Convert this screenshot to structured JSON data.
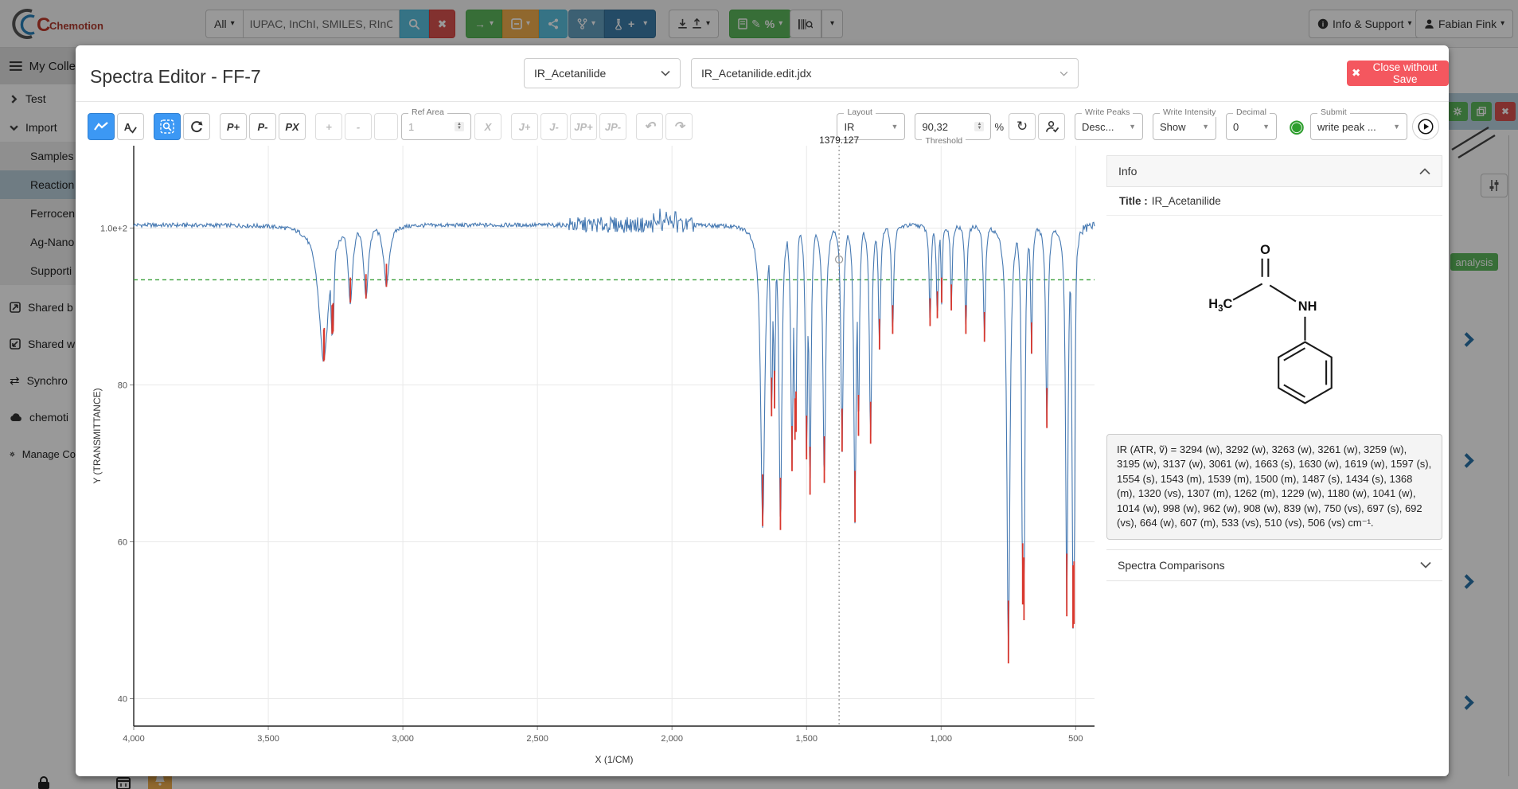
{
  "navbar": {
    "brand": "Chemotion",
    "search_scope": "All",
    "search_placeholder": "IUPAC, InChI, SMILES, RInChI",
    "info_support_label": "Info & Support",
    "user_label": "Fabian Fink"
  },
  "sidebar": {
    "header": "My Colle",
    "items": [
      {
        "label": "Test"
      },
      {
        "label": "Import"
      },
      {
        "label": "Samples"
      },
      {
        "label": "Reaction"
      },
      {
        "label": "Ferrocen"
      },
      {
        "label": "Ag-Nano"
      },
      {
        "label": "Supporti"
      },
      {
        "label": "Shared b"
      },
      {
        "label": "Shared w"
      },
      {
        "label": "Synchro"
      },
      {
        "label": "chemoti"
      },
      {
        "label": "Manage Co"
      }
    ]
  },
  "background_right": {
    "analysis_badge": "analysis"
  },
  "modal": {
    "title": "Spectra Editor - FF-7",
    "spectrum_select": "IR_Acetanilide",
    "file_select": "IR_Acetanilide.edit.jdx",
    "close_button": "Close without Save",
    "toolbar": {
      "a_label": "A",
      "p_plus": "P+",
      "p_minus": "P-",
      "px": "PX",
      "plus": "+",
      "minus": "-",
      "ref_area_legend": "Ref Area",
      "ref_area_value": "1",
      "x_label": "X",
      "j_plus": "J+",
      "j_minus": "J-",
      "jp_plus": "JP+",
      "jp_minus": "JP-",
      "layout_legend": "Layout",
      "layout_value": "IR",
      "threshold_legend": "Threshold",
      "threshold_value": "90,32",
      "percent": "%",
      "write_peaks_legend": "Write Peaks",
      "write_peaks_value": "Desc...",
      "write_intensity_legend": "Write Intensity",
      "write_intensity_value": "Show",
      "decimal_legend": "Decimal",
      "decimal_value": "0",
      "submit_legend": "Submit",
      "submit_value": "write peak ..."
    }
  },
  "info_panel": {
    "header": "Info",
    "title_label": "Title :",
    "title_value": "IR_Acetanilide",
    "molecule": {
      "o": "O",
      "h": "H",
      "sub3": "3",
      "c": "C",
      "nh": "NH"
    },
    "peaks_text": "IR (ATR, ṽ) = 3294 (w), 3292 (w), 3263 (w), 3261 (w), 3259 (w), 3195 (w), 3137 (w), 3061 (w), 1663 (s), 1630 (w), 1619 (w), 1597 (s), 1554 (s), 1543 (m), 1539 (m), 1500 (m), 1487 (s), 1434 (s), 1368 (m), 1320 (vs), 1307 (m), 1262 (m), 1229 (w), 1180 (w), 1041 (w), 1014 (w), 998 (w), 962 (w), 908 (w), 839 (w), 750 (vs), 697 (s), 692 (vs), 664 (w), 607 (m), 533 (vs), 510 (vs), 506 (vs) cm⁻¹.",
    "comparisons_header": "Spectra Comparisons"
  },
  "chart_data": {
    "type": "line",
    "title": "",
    "xlabel": "X (1/CM)",
    "ylabel": "Y (TRANSMITTANCE)",
    "xlim": [
      4000,
      430
    ],
    "ylim": [
      36.5,
      110.5
    ],
    "x_ticks": [
      4000,
      3500,
      3000,
      2500,
      2000,
      1500,
      1000,
      500
    ],
    "x_tick_labels": [
      "4,000",
      "3,500",
      "3,000",
      "2,500",
      "2,000",
      "1,500",
      "1,000",
      "500"
    ],
    "y_ticks": [
      100,
      80,
      60,
      40
    ],
    "y_tick_labels": [
      "1.0e+2",
      "80",
      "60",
      "40"
    ],
    "grid": true,
    "legend": false,
    "baseline": 100.4,
    "line_color": "#4679b2",
    "grid_color": "#e9e9e9",
    "axis_color": "#222222",
    "threshold_line": {
      "value": 93.4,
      "color": "#3aa03a"
    },
    "cursor": {
      "x": 1379.127,
      "label": "1379.127",
      "marker_y": 96
    },
    "peak_marker_color": "#d9382e",
    "peaks": [
      {
        "x": 3294,
        "t": 83.0,
        "hw": 22,
        "cls": "w"
      },
      {
        "x": 3292,
        "t": 83.2,
        "hw": 9,
        "cls": "w"
      },
      {
        "x": 3263,
        "t": 86.5,
        "hw": 8,
        "cls": "w"
      },
      {
        "x": 3261,
        "t": 86.6,
        "hw": 6,
        "cls": "w"
      },
      {
        "x": 3259,
        "t": 86.8,
        "hw": 5,
        "cls": "w"
      },
      {
        "x": 3195,
        "t": 90.5,
        "hw": 10,
        "cls": "w"
      },
      {
        "x": 3137,
        "t": 91.0,
        "hw": 10,
        "cls": "w"
      },
      {
        "x": 3061,
        "t": 92.5,
        "hw": 12,
        "cls": "w"
      },
      {
        "x": 1663,
        "t": 62.0,
        "hw": 9,
        "cls": "s"
      },
      {
        "x": 1630,
        "t": 76.0,
        "hw": 5,
        "cls": "w"
      },
      {
        "x": 1619,
        "t": 77.0,
        "hw": 4,
        "cls": "w"
      },
      {
        "x": 1597,
        "t": 61.5,
        "hw": 6,
        "cls": "s"
      },
      {
        "x": 1554,
        "t": 69.0,
        "hw": 5,
        "cls": "s"
      },
      {
        "x": 1543,
        "t": 73.0,
        "hw": 3.5,
        "cls": "m"
      },
      {
        "x": 1539,
        "t": 74.0,
        "hw": 3,
        "cls": "m"
      },
      {
        "x": 1500,
        "t": 70.5,
        "hw": 5,
        "cls": "m"
      },
      {
        "x": 1487,
        "t": 66.0,
        "hw": 4.5,
        "cls": "s"
      },
      {
        "x": 1434,
        "t": 67.5,
        "hw": 6,
        "cls": "s"
      },
      {
        "x": 1368,
        "t": 71.5,
        "hw": 5,
        "cls": "m"
      },
      {
        "x": 1320,
        "t": 62.5,
        "hw": 5,
        "cls": "vs"
      },
      {
        "x": 1307,
        "t": 73.5,
        "hw": 4,
        "cls": "m"
      },
      {
        "x": 1262,
        "t": 72.5,
        "hw": 5,
        "cls": "m"
      },
      {
        "x": 1229,
        "t": 84.5,
        "hw": 4.5,
        "cls": "w"
      },
      {
        "x": 1180,
        "t": 86.5,
        "hw": 4.5,
        "cls": "w"
      },
      {
        "x": 1041,
        "t": 87.5,
        "hw": 4,
        "cls": "w"
      },
      {
        "x": 1014,
        "t": 88.5,
        "hw": 4,
        "cls": "w"
      },
      {
        "x": 998,
        "t": 90.5,
        "hw": 3,
        "cls": "w"
      },
      {
        "x": 962,
        "t": 89.5,
        "hw": 3.5,
        "cls": "w"
      },
      {
        "x": 908,
        "t": 86.5,
        "hw": 4,
        "cls": "w"
      },
      {
        "x": 839,
        "t": 85.5,
        "hw": 4.5,
        "cls": "w"
      },
      {
        "x": 750,
        "t": 44.5,
        "hw": 6.5,
        "cls": "vs"
      },
      {
        "x": 697,
        "t": 52.0,
        "hw": 4.5,
        "cls": "s"
      },
      {
        "x": 692,
        "t": 50.0,
        "hw": 4,
        "cls": "vs"
      },
      {
        "x": 664,
        "t": 84.0,
        "hw": 4,
        "cls": "w"
      },
      {
        "x": 607,
        "t": 74.5,
        "hw": 5,
        "cls": "m"
      },
      {
        "x": 533,
        "t": 50.5,
        "hw": 5,
        "cls": "vs"
      },
      {
        "x": 510,
        "t": 49.0,
        "hw": 4,
        "cls": "vs"
      },
      {
        "x": 506,
        "t": 49.5,
        "hw": 3.5,
        "cls": "vs"
      }
    ],
    "noise": {
      "base_amp": 0.55,
      "co2_region": [
        1905,
        2390
      ],
      "co2_amp": 2.0,
      "low_region_max": 530,
      "low_amp": 1.3
    }
  }
}
